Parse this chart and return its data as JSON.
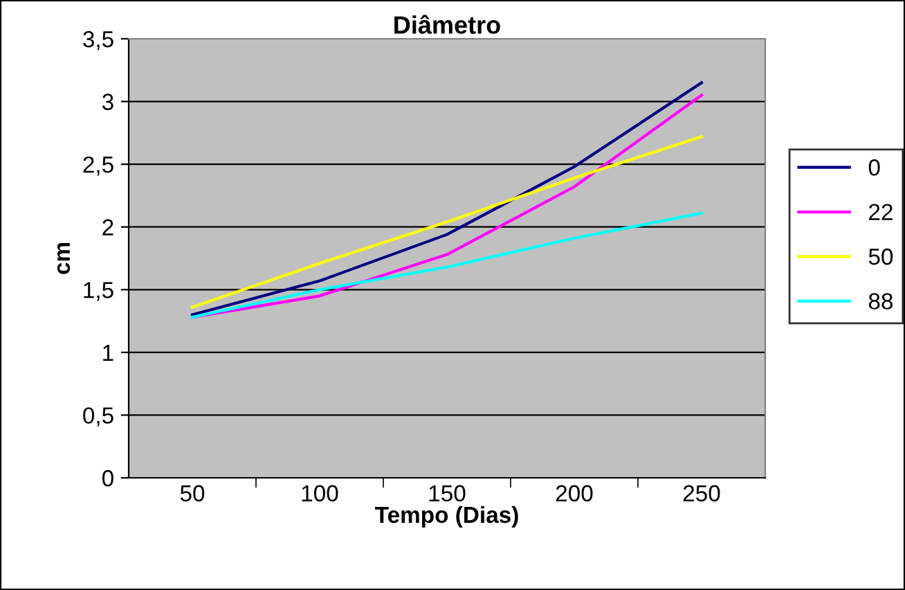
{
  "chart_data": {
    "type": "line",
    "title": "Diâmetro",
    "xlabel": "Tempo (Dias)",
    "ylabel": "cm",
    "categories": [
      "50",
      "100",
      "150",
      "200",
      "250"
    ],
    "series": [
      {
        "name": "0",
        "color": "#000080",
        "values": [
          1.3,
          1.57,
          1.94,
          2.48,
          3.15
        ]
      },
      {
        "name": "22",
        "color": "#ff00ff",
        "values": [
          1.28,
          1.45,
          1.78,
          2.32,
          3.05
        ]
      },
      {
        "name": "50",
        "color": "#ffff00",
        "values": [
          1.36,
          1.71,
          2.04,
          2.39,
          2.72
        ]
      },
      {
        "name": "88",
        "color": "#00ffff",
        "values": [
          1.28,
          1.5,
          1.68,
          1.91,
          2.11
        ]
      }
    ],
    "ylim": [
      0,
      3.5
    ],
    "yticks": [
      {
        "value": 0,
        "label": "0"
      },
      {
        "value": 0.5,
        "label": "0,5"
      },
      {
        "value": 1,
        "label": "1"
      },
      {
        "value": 1.5,
        "label": "1,5"
      },
      {
        "value": 2,
        "label": "2"
      },
      {
        "value": 2.5,
        "label": "2,5"
      },
      {
        "value": 3,
        "label": "3"
      },
      {
        "value": 3.5,
        "label": "3,5"
      }
    ],
    "grid": "y",
    "legend": "right",
    "marker": "none",
    "line_style": "solid"
  }
}
